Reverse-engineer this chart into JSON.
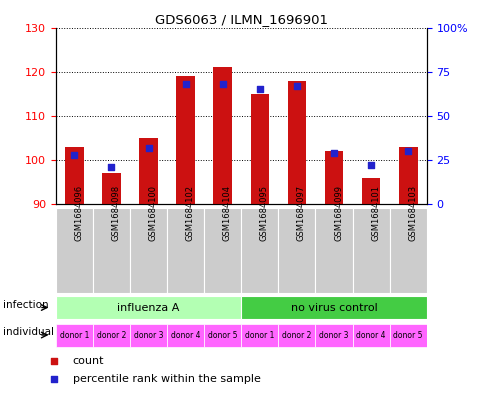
{
  "title": "GDS6063 / ILMN_1696901",
  "samples": [
    "GSM1684096",
    "GSM1684098",
    "GSM1684100",
    "GSM1684102",
    "GSM1684104",
    "GSM1684095",
    "GSM1684097",
    "GSM1684099",
    "GSM1684101",
    "GSM1684103"
  ],
  "count_values": [
    103,
    97,
    105,
    119,
    121,
    115,
    118,
    102,
    96,
    103
  ],
  "percentile_values": [
    28,
    21,
    32,
    68,
    68,
    65,
    67,
    29,
    22,
    30
  ],
  "ylim_left": [
    90,
    130
  ],
  "ylim_right": [
    0,
    100
  ],
  "yticks_left": [
    90,
    100,
    110,
    120,
    130
  ],
  "yticks_right": [
    0,
    25,
    50,
    75,
    100
  ],
  "infection_groups": [
    {
      "label": "influenza A",
      "start": 0,
      "end": 5,
      "color": "#b3ffb3"
    },
    {
      "label": "no virus control",
      "start": 5,
      "end": 10,
      "color": "#44cc44"
    }
  ],
  "individual_labels": [
    "donor 1",
    "donor 2",
    "donor 3",
    "donor 4",
    "donor 5",
    "donor 1",
    "donor 2",
    "donor 3",
    "donor 4",
    "donor 5"
  ],
  "individual_color": "#ff66ff",
  "bar_color": "#cc1111",
  "dot_color": "#2222cc",
  "bar_bottom": 90,
  "bar_width": 0.5,
  "dot_size": 20,
  "sample_box_color": "#cccccc",
  "left_label_infection": "infection",
  "left_label_individual": "individual",
  "legend_count": "count",
  "legend_percentile": "percentile rank within the sample"
}
